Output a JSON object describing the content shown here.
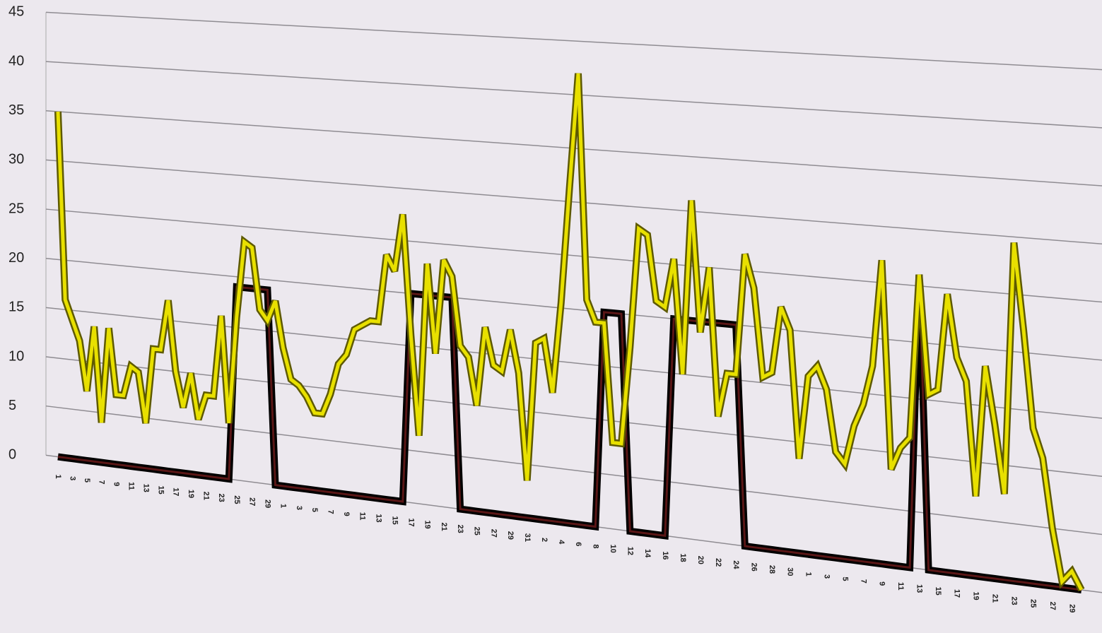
{
  "chart_data": {
    "type": "line",
    "categories": [
      "1",
      null,
      "3",
      null,
      "5",
      null,
      "7",
      null,
      "9",
      null,
      "11",
      null,
      "13",
      null,
      "15",
      null,
      "17",
      null,
      "19",
      null,
      "21",
      null,
      "23",
      null,
      "25",
      null,
      "27",
      null,
      "29",
      null,
      "1",
      null,
      "3",
      null,
      "5",
      null,
      "7",
      null,
      "9",
      null,
      "11",
      null,
      "13",
      null,
      "15",
      null,
      "17",
      null,
      "19",
      null,
      "21",
      null,
      "23",
      null,
      "25",
      null,
      "27",
      null,
      "29",
      null,
      "31",
      null,
      "2",
      null,
      "4",
      null,
      "6",
      null,
      "8",
      null,
      "10",
      null,
      "12",
      null,
      "14",
      null,
      "16",
      null,
      "18",
      null,
      "20",
      null,
      "22",
      null,
      "24",
      null,
      "26",
      null,
      "28",
      null,
      "30",
      null,
      "1",
      null,
      "3",
      null,
      "5",
      null,
      "7",
      null,
      "9",
      null,
      "11",
      null,
      "13",
      null,
      "15",
      null,
      "17",
      null,
      "19",
      null,
      "21",
      null,
      "23",
      null,
      "25",
      null,
      "27",
      null,
      "29",
      null
    ],
    "series": [
      {
        "color": "#1a0505",
        "values": [
          0,
          0,
          0,
          0,
          0,
          0,
          0,
          0,
          0,
          0,
          0,
          0,
          0,
          0,
          0,
          0,
          0,
          0,
          0,
          0,
          0,
          0,
          0,
          0,
          19,
          19,
          19,
          19,
          19,
          0,
          0,
          0,
          0,
          0,
          0,
          0,
          0,
          0,
          0,
          0,
          0,
          0,
          0,
          0,
          0,
          0,
          20,
          20,
          20,
          20,
          20,
          20,
          0,
          0,
          0,
          0,
          0,
          0,
          0,
          0,
          0,
          0,
          0,
          0,
          0,
          0,
          0,
          0,
          0,
          20,
          20,
          20,
          0,
          0,
          0,
          0,
          0,
          20,
          20,
          20,
          20,
          20,
          20,
          20,
          20,
          0,
          0,
          0,
          0,
          0,
          0,
          0,
          0,
          0,
          0,
          0,
          0,
          0,
          0,
          0,
          0,
          0,
          0,
          0,
          26,
          0,
          0,
          0,
          0,
          0,
          0,
          0,
          0,
          0,
          0,
          0,
          0,
          0,
          0,
          0,
          0,
          0
        ]
      },
      {
        "color": "#e8e000",
        "values": [
          35,
          16,
          14,
          12,
          7,
          13.6,
          4,
          13.6,
          7,
          7,
          10,
          9.5,
          4.5,
          12,
          12,
          17,
          10,
          6.5,
          10,
          5.5,
          8,
          8,
          16,
          5.5,
          16,
          23.5,
          23,
          17,
          16,
          18,
          13.5,
          10.5,
          10,
          9,
          7.5,
          7.5,
          9.5,
          12.5,
          13.5,
          16,
          16.5,
          17,
          17,
          23.5,
          22,
          27.5,
          16,
          6.5,
          23,
          14.5,
          23.5,
          22,
          15.5,
          14.5,
          10,
          17.5,
          14,
          13.5,
          17.5,
          13.5,
          3.5,
          16.5,
          17,
          12,
          20.5,
          31.5,
          42,
          21,
          19,
          19,
          8,
          8,
          17,
          28,
          27.5,
          21.5,
          21,
          25.5,
          15,
          31,
          19,
          25,
          11.5,
          15.5,
          15.5,
          26.5,
          23.5,
          15.5,
          16,
          22,
          20,
          8.5,
          16,
          17,
          15,
          9.5,
          8.5,
          12,
          14,
          17.5,
          27,
          8.5,
          10.5,
          11.5,
          26,
          15.5,
          16,
          24.5,
          19,
          17,
          7,
          18.5,
          13.5,
          7.5,
          29.5,
          22,
          13.5,
          11,
          5,
          0.5,
          1.5,
          0
        ]
      }
    ],
    "ylim": [
      0,
      45
    ],
    "yticks": [
      0,
      5,
      10,
      15,
      20,
      25,
      30,
      35,
      40,
      45
    ],
    "grid": true
  }
}
